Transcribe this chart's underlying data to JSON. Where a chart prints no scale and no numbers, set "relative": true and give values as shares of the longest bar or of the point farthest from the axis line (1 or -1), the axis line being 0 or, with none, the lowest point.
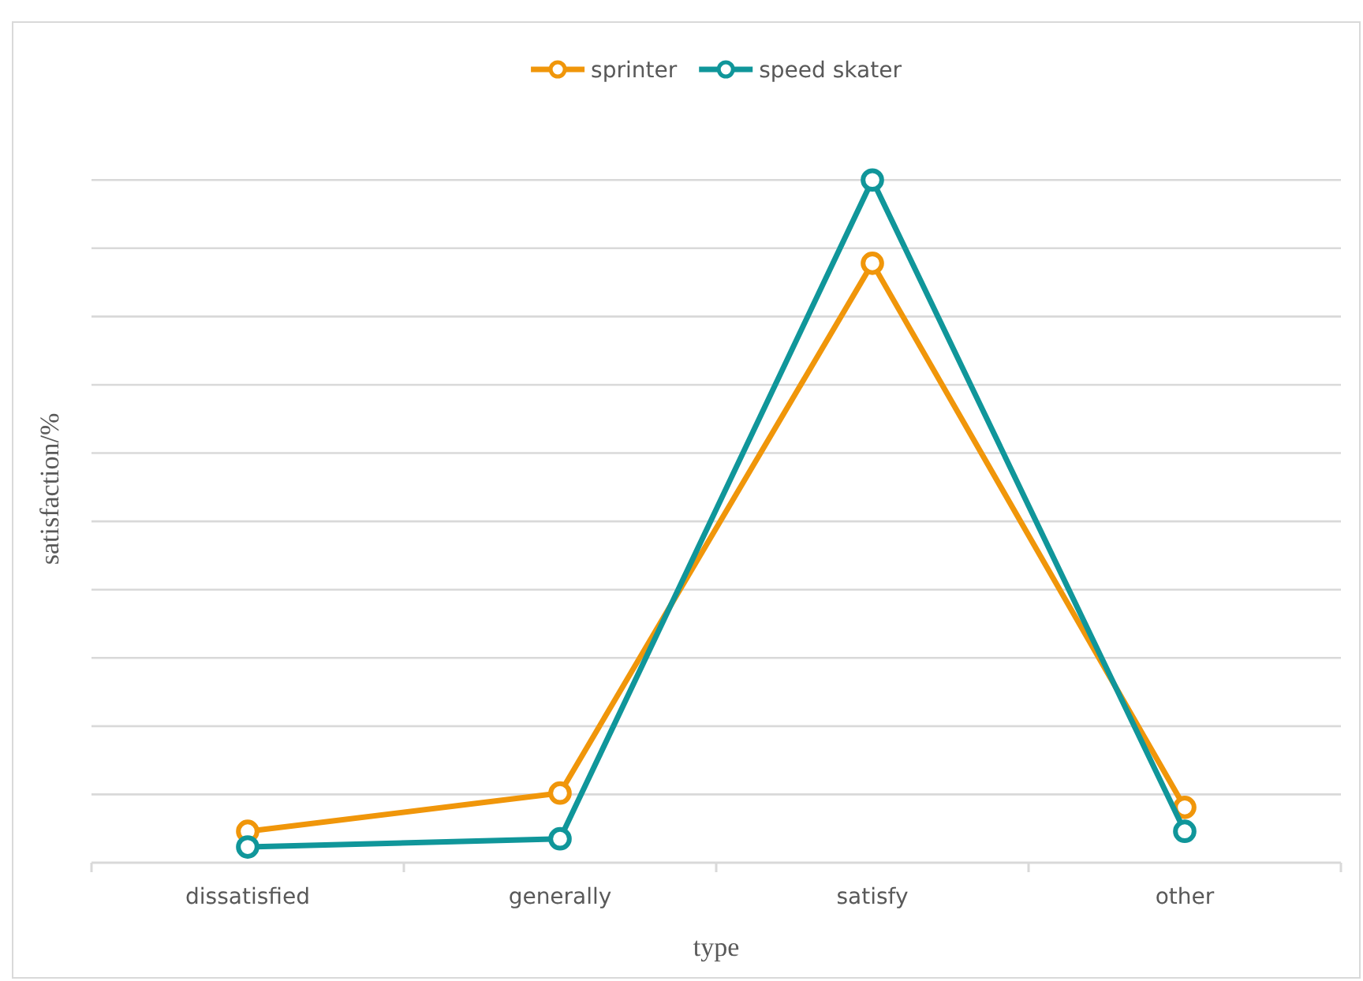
{
  "chart_data": {
    "type": "line",
    "xlabel": "type",
    "ylabel": "satisfaction/%",
    "categories": [
      "dissatisfied",
      "generally",
      "satisfy",
      "other"
    ],
    "relative": true,
    "grid": "y",
    "legend": "top",
    "marker": "circle",
    "line_style": "solid",
    "series": [
      {
        "name": "sprinter",
        "color": "#f0960a",
        "values": [
          0.046,
          0.102,
          0.878,
          0.081
        ]
      },
      {
        "name": "speed skater",
        "color": "#10969a",
        "values": [
          0.023,
          0.035,
          1,
          0.046
        ]
      }
    ]
  }
}
